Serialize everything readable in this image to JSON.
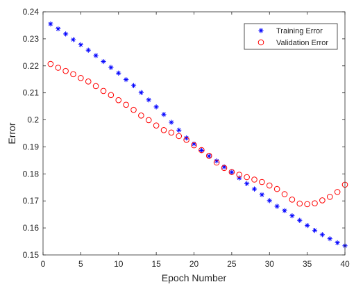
{
  "chart_data": {
    "type": "scatter",
    "title": "",
    "xlabel": "Epoch Number",
    "ylabel": "Error",
    "xlim": [
      0,
      40
    ],
    "ylim": [
      0.15,
      0.24
    ],
    "xticks": [
      "0",
      "5",
      "10",
      "15",
      "20",
      "25",
      "30",
      "35",
      "40"
    ],
    "yticks": [
      "0.15",
      "0.16",
      "0.17",
      "0.18",
      "0.19",
      "0.2",
      "0.21",
      "0.22",
      "0.23",
      "0.24"
    ],
    "grid": false,
    "legend_position": "top-right",
    "x": [
      1,
      2,
      3,
      4,
      5,
      6,
      7,
      8,
      9,
      10,
      11,
      12,
      13,
      14,
      15,
      16,
      17,
      18,
      19,
      20,
      21,
      22,
      23,
      24,
      25,
      26,
      27,
      28,
      29,
      30,
      31,
      32,
      33,
      34,
      35,
      36,
      37,
      38,
      39,
      40
    ],
    "series": [
      {
        "name": "Training Error",
        "marker": "asterisk",
        "color": "#0000ff",
        "values": [
          0.2355,
          0.2337,
          0.2318,
          0.2297,
          0.2278,
          0.2258,
          0.2238,
          0.2216,
          0.2194,
          0.2173,
          0.2149,
          0.2127,
          0.2101,
          0.2074,
          0.2048,
          0.202,
          0.1991,
          0.1962,
          0.1933,
          0.1911,
          0.1887,
          0.1866,
          0.1848,
          0.1826,
          0.1806,
          0.1785,
          0.1764,
          0.1744,
          0.1723,
          0.1701,
          0.168,
          0.1664,
          0.1645,
          0.1628,
          0.1609,
          0.1591,
          0.1575,
          0.156,
          0.1545,
          0.1534
        ]
      },
      {
        "name": "Validation Error",
        "marker": "circle",
        "color": "#ff0000",
        "values": [
          0.2207,
          0.2193,
          0.2181,
          0.2169,
          0.2155,
          0.2142,
          0.2125,
          0.2107,
          0.2092,
          0.2073,
          0.2056,
          0.2037,
          0.2016,
          0.1999,
          0.1979,
          0.1962,
          0.1953,
          0.194,
          0.1926,
          0.1906,
          0.1888,
          0.1867,
          0.1842,
          0.1822,
          0.1807,
          0.1797,
          0.1788,
          0.1779,
          0.177,
          0.1757,
          0.1744,
          0.1725,
          0.1705,
          0.169,
          0.1688,
          0.1691,
          0.1702,
          0.1715,
          0.1733,
          0.176
        ]
      }
    ]
  }
}
